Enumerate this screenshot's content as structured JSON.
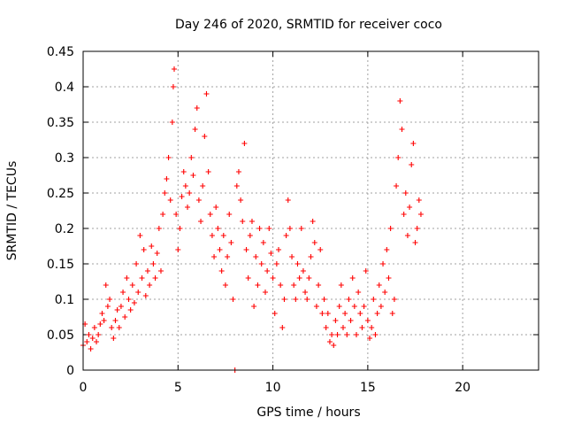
{
  "chart_data": {
    "type": "scatter",
    "title": "Day 246 of 2020, SRMTID for receiver coco",
    "xlabel": "GPS time / hours",
    "ylabel": "SRMTID / TECUs",
    "xlim": [
      0,
      24
    ],
    "ylim": [
      0,
      0.45
    ],
    "xticks": [
      0,
      5,
      10,
      15,
      20
    ],
    "xtick_labels": [
      "0",
      "5",
      "10",
      "15",
      "20"
    ],
    "yticks": [
      0,
      0.05,
      0.1,
      0.15,
      0.2,
      0.25,
      0.3,
      0.35,
      0.4,
      0.45
    ],
    "ytick_labels": [
      "0",
      "0.05",
      "0.1",
      "0.15",
      "0.2",
      "0.25",
      "0.3",
      "0.35",
      "0.4",
      "0.45"
    ],
    "grid": true,
    "marker": "+",
    "color": "#ff0000",
    "series": [
      {
        "name": "SRMTID",
        "points": [
          [
            0.0,
            0.035
          ],
          [
            0.1,
            0.065
          ],
          [
            0.2,
            0.04
          ],
          [
            0.3,
            0.05
          ],
          [
            0.4,
            0.03
          ],
          [
            0.5,
            0.045
          ],
          [
            0.6,
            0.06
          ],
          [
            0.7,
            0.04
          ],
          [
            0.8,
            0.05
          ],
          [
            0.9,
            0.065
          ],
          [
            1.0,
            0.08
          ],
          [
            1.1,
            0.07
          ],
          [
            1.2,
            0.12
          ],
          [
            1.3,
            0.09
          ],
          [
            1.4,
            0.1
          ],
          [
            1.5,
            0.06
          ],
          [
            1.6,
            0.045
          ],
          [
            1.7,
            0.07
          ],
          [
            1.8,
            0.085
          ],
          [
            1.9,
            0.06
          ],
          [
            2.0,
            0.09
          ],
          [
            2.1,
            0.11
          ],
          [
            2.2,
            0.075
          ],
          [
            2.3,
            0.13
          ],
          [
            2.4,
            0.1
          ],
          [
            2.5,
            0.085
          ],
          [
            2.6,
            0.12
          ],
          [
            2.7,
            0.095
          ],
          [
            2.8,
            0.15
          ],
          [
            2.9,
            0.11
          ],
          [
            3.0,
            0.19
          ],
          [
            3.1,
            0.13
          ],
          [
            3.2,
            0.17
          ],
          [
            3.3,
            0.105
          ],
          [
            3.4,
            0.14
          ],
          [
            3.5,
            0.12
          ],
          [
            3.6,
            0.175
          ],
          [
            3.7,
            0.15
          ],
          [
            3.8,
            0.13
          ],
          [
            3.9,
            0.165
          ],
          [
            4.0,
            0.2
          ],
          [
            4.1,
            0.14
          ],
          [
            4.2,
            0.22
          ],
          [
            4.3,
            0.25
          ],
          [
            4.4,
            0.27
          ],
          [
            4.5,
            0.3
          ],
          [
            4.6,
            0.24
          ],
          [
            4.7,
            0.35
          ],
          [
            4.75,
            0.4
          ],
          [
            4.8,
            0.425
          ],
          [
            4.9,
            0.22
          ],
          [
            5.0,
            0.17
          ],
          [
            5.1,
            0.2
          ],
          [
            5.2,
            0.245
          ],
          [
            5.3,
            0.28
          ],
          [
            5.4,
            0.26
          ],
          [
            5.5,
            0.23
          ],
          [
            5.6,
            0.25
          ],
          [
            5.7,
            0.3
          ],
          [
            5.8,
            0.275
          ],
          [
            5.9,
            0.34
          ],
          [
            6.0,
            0.37
          ],
          [
            6.1,
            0.24
          ],
          [
            6.2,
            0.21
          ],
          [
            6.3,
            0.26
          ],
          [
            6.4,
            0.33
          ],
          [
            6.5,
            0.39
          ],
          [
            6.6,
            0.28
          ],
          [
            6.7,
            0.22
          ],
          [
            6.8,
            0.19
          ],
          [
            6.9,
            0.16
          ],
          [
            7.0,
            0.23
          ],
          [
            7.1,
            0.2
          ],
          [
            7.2,
            0.17
          ],
          [
            7.3,
            0.14
          ],
          [
            7.4,
            0.19
          ],
          [
            7.5,
            0.12
          ],
          [
            7.6,
            0.16
          ],
          [
            7.7,
            0.22
          ],
          [
            7.8,
            0.18
          ],
          [
            7.9,
            0.1
          ],
          [
            8.0,
            0.0
          ],
          [
            8.1,
            0.26
          ],
          [
            8.2,
            0.28
          ],
          [
            8.3,
            0.24
          ],
          [
            8.4,
            0.21
          ],
          [
            8.5,
            0.32
          ],
          [
            8.6,
            0.17
          ],
          [
            8.7,
            0.13
          ],
          [
            8.8,
            0.19
          ],
          [
            8.9,
            0.21
          ],
          [
            9.0,
            0.09
          ],
          [
            9.1,
            0.16
          ],
          [
            9.2,
            0.12
          ],
          [
            9.3,
            0.2
          ],
          [
            9.4,
            0.15
          ],
          [
            9.5,
            0.18
          ],
          [
            9.6,
            0.11
          ],
          [
            9.7,
            0.14
          ],
          [
            9.8,
            0.2
          ],
          [
            9.9,
            0.165
          ],
          [
            10.0,
            0.13
          ],
          [
            10.1,
            0.08
          ],
          [
            10.2,
            0.15
          ],
          [
            10.3,
            0.17
          ],
          [
            10.4,
            0.12
          ],
          [
            10.5,
            0.06
          ],
          [
            10.6,
            0.1
          ],
          [
            10.7,
            0.19
          ],
          [
            10.8,
            0.24
          ],
          [
            10.9,
            0.2
          ],
          [
            11.0,
            0.16
          ],
          [
            11.1,
            0.12
          ],
          [
            11.2,
            0.1
          ],
          [
            11.3,
            0.15
          ],
          [
            11.4,
            0.13
          ],
          [
            11.5,
            0.2
          ],
          [
            11.6,
            0.14
          ],
          [
            11.7,
            0.11
          ],
          [
            11.8,
            0.1
          ],
          [
            11.9,
            0.13
          ],
          [
            12.0,
            0.16
          ],
          [
            12.1,
            0.21
          ],
          [
            12.2,
            0.18
          ],
          [
            12.3,
            0.09
          ],
          [
            12.4,
            0.12
          ],
          [
            12.5,
            0.17
          ],
          [
            12.6,
            0.08
          ],
          [
            12.7,
            0.1
          ],
          [
            12.8,
            0.06
          ],
          [
            12.9,
            0.08
          ],
          [
            13.0,
            0.04
          ],
          [
            13.1,
            0.05
          ],
          [
            13.2,
            0.035
          ],
          [
            13.3,
            0.07
          ],
          [
            13.4,
            0.05
          ],
          [
            13.5,
            0.09
          ],
          [
            13.6,
            0.12
          ],
          [
            13.7,
            0.06
          ],
          [
            13.8,
            0.08
          ],
          [
            13.9,
            0.05
          ],
          [
            14.0,
            0.1
          ],
          [
            14.1,
            0.07
          ],
          [
            14.2,
            0.13
          ],
          [
            14.3,
            0.09
          ],
          [
            14.4,
            0.05
          ],
          [
            14.5,
            0.11
          ],
          [
            14.6,
            0.08
          ],
          [
            14.7,
            0.06
          ],
          [
            14.8,
            0.09
          ],
          [
            14.9,
            0.14
          ],
          [
            15.0,
            0.07
          ],
          [
            15.1,
            0.045
          ],
          [
            15.2,
            0.06
          ],
          [
            15.3,
            0.1
          ],
          [
            15.4,
            0.05
          ],
          [
            15.5,
            0.08
          ],
          [
            15.6,
            0.12
          ],
          [
            15.7,
            0.09
          ],
          [
            15.8,
            0.15
          ],
          [
            15.9,
            0.11
          ],
          [
            16.0,
            0.17
          ],
          [
            16.1,
            0.13
          ],
          [
            16.2,
            0.2
          ],
          [
            16.3,
            0.08
          ],
          [
            16.4,
            0.1
          ],
          [
            16.5,
            0.26
          ],
          [
            16.6,
            0.3
          ],
          [
            16.7,
            0.38
          ],
          [
            16.8,
            0.34
          ],
          [
            16.9,
            0.22
          ],
          [
            17.0,
            0.25
          ],
          [
            17.1,
            0.19
          ],
          [
            17.2,
            0.23
          ],
          [
            17.3,
            0.29
          ],
          [
            17.4,
            0.32
          ],
          [
            17.5,
            0.18
          ],
          [
            17.6,
            0.2
          ],
          [
            17.7,
            0.24
          ],
          [
            17.8,
            0.22
          ]
        ]
      }
    ]
  }
}
